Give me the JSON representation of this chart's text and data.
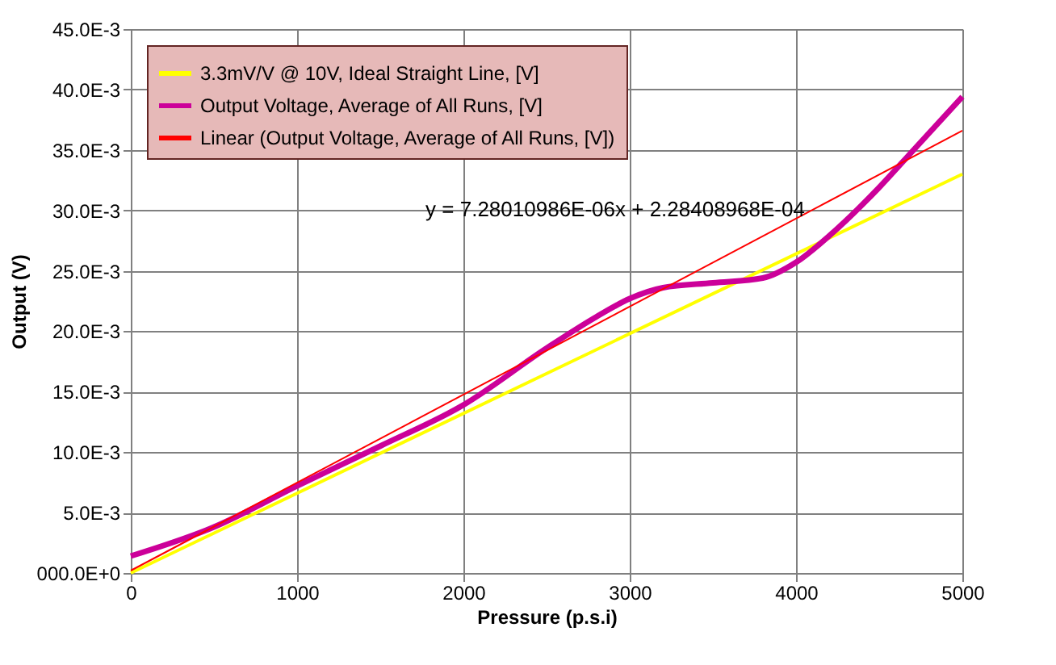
{
  "chart_data": {
    "type": "line",
    "xlabel": "Pressure (p.s.i)",
    "ylabel": "Output (V)",
    "xlim": [
      0,
      5000
    ],
    "xticks": [
      0,
      1000,
      2000,
      3000,
      4000,
      5000
    ],
    "ylim": [
      0,
      0.045
    ],
    "yticks": [
      {
        "value": 0,
        "label": "000.0E+0"
      },
      {
        "value": 0.005,
        "label": "5.0E-3"
      },
      {
        "value": 0.01,
        "label": "10.0E-3"
      },
      {
        "value": 0.015,
        "label": "15.0E-3"
      },
      {
        "value": 0.02,
        "label": "20.0E-3"
      },
      {
        "value": 0.025,
        "label": "25.0E-3"
      },
      {
        "value": 0.03,
        "label": "30.0E-3"
      },
      {
        "value": 0.035,
        "label": "35.0E-3"
      },
      {
        "value": 0.04,
        "label": "40.0E-3"
      },
      {
        "value": 0.045,
        "label": "45.0E-3"
      }
    ],
    "grid": true,
    "legend": "top left",
    "marker": "none",
    "series": [
      {
        "name": "3.3mV/V @ 10V, Ideal Straight Line, [V]",
        "color": "#ffff00",
        "x": [
          0,
          5000
        ],
        "values": [
          0,
          0.033
        ]
      },
      {
        "name": "Output Voltage, Average of All Runs, [V]",
        "color": "#cc0099",
        "x": [
          0,
          500,
          1000,
          1500,
          2000,
          2500,
          2800,
          3000,
          3200,
          3500,
          3800,
          4000,
          4200,
          4500,
          4700,
          5000
        ],
        "values": [
          0.0014,
          0.0038,
          0.0072,
          0.0105,
          0.0139,
          0.0186,
          0.0212,
          0.0227,
          0.0236,
          0.024,
          0.0244,
          0.0257,
          0.0279,
          0.0319,
          0.0349,
          0.0394
        ]
      },
      {
        "name": "Linear (Output Voltage, Average of All Runs, [V])",
        "color": "#ff0000",
        "x": [
          0,
          5000
        ],
        "values": [
          0.0002,
          0.0366
        ]
      }
    ],
    "annotations": [
      "y = 7.28010986E-06x + 2.28408968E-04"
    ]
  }
}
